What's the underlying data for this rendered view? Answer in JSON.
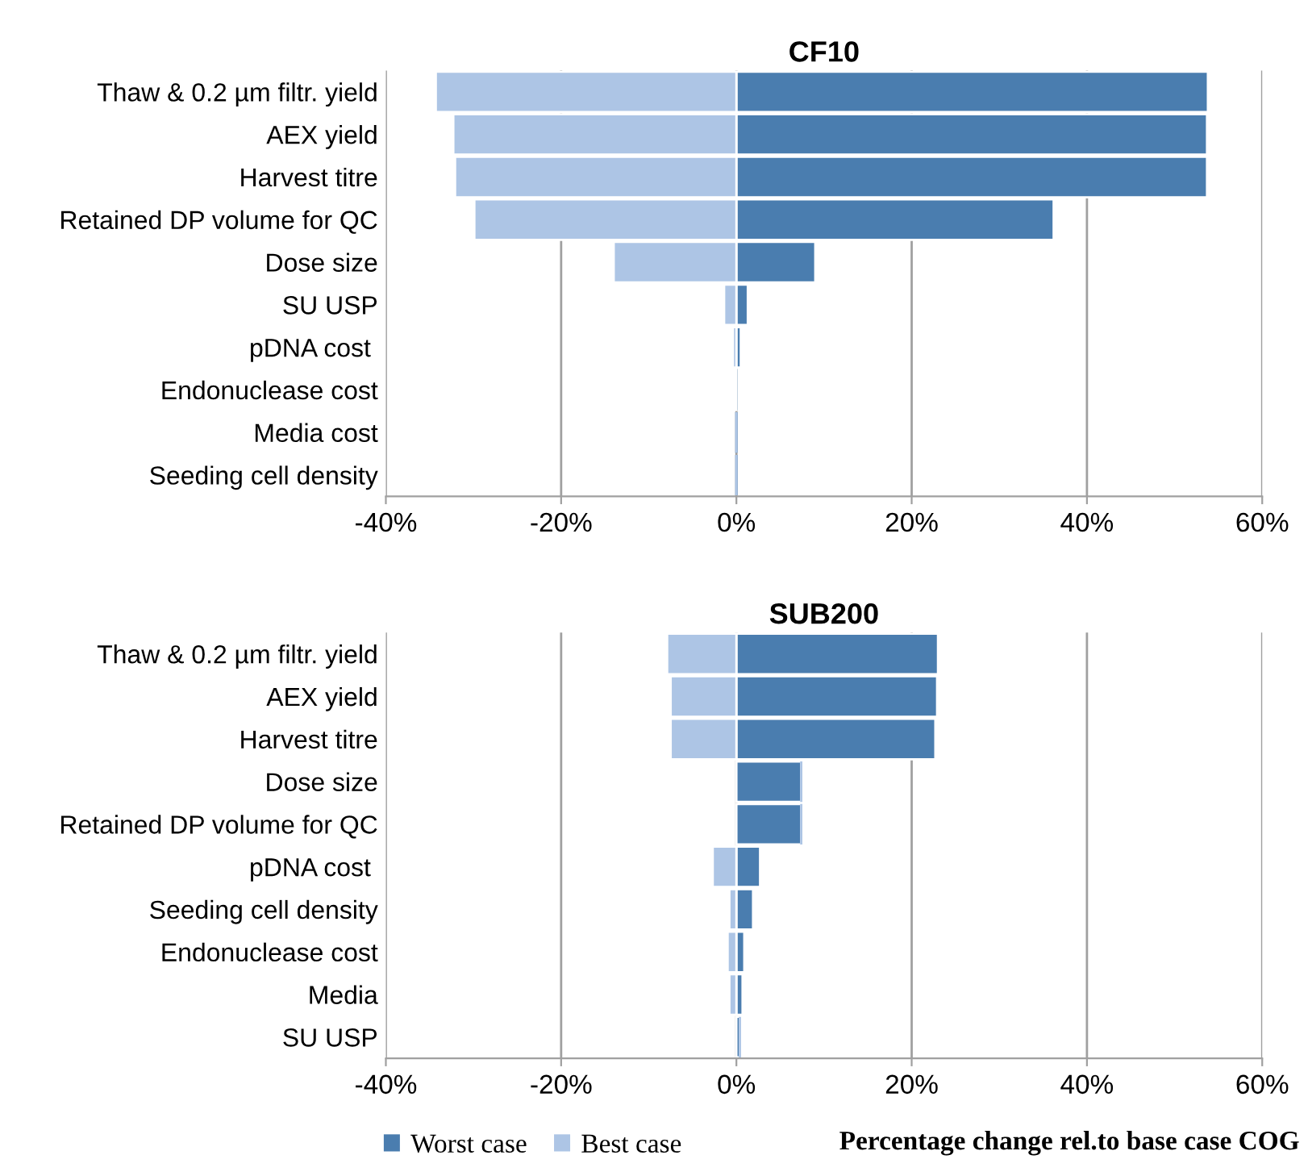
{
  "chart_data": [
    {
      "type": "bar",
      "orientation": "horizontal",
      "title": "CF10",
      "categories": [
        "Thaw & 0.2 µm filtr. yield",
        "AEX yield",
        "Harvest titre",
        "Retained DP volume for QC",
        "Dose size",
        "SU USP",
        "pDNA cost ",
        "Endonuclease cost",
        "Media cost",
        "Seeding cell density"
      ],
      "series": [
        {
          "color": "#4a7daf",
          "values": [
            53.8,
            53.7,
            53.7,
            36.2,
            9.0,
            1.3,
            0.5,
            0.0,
            0.0,
            0.0
          ]
        },
        {
          "color": "#adc5e5",
          "values": [
            -34.3,
            -32.3,
            -32.1,
            -29.9,
            -14.0,
            -1.4,
            -0.4,
            -0.1,
            0.0,
            0.0
          ]
        }
      ],
      "stacked": true,
      "xlim": [
        -40,
        60
      ],
      "xticks": [
        {
          "value": -40,
          "label": "-40%"
        },
        {
          "value": -20,
          "label": "-20%"
        },
        {
          "value": 0,
          "label": "0%"
        },
        {
          "value": 20,
          "label": "20%"
        },
        {
          "value": 40,
          "label": "40%"
        },
        {
          "value": 60,
          "label": "60%"
        }
      ],
      "grid": "x",
      "legend": false
    },
    {
      "type": "bar",
      "orientation": "horizontal",
      "title": "SUB200",
      "xlabel": "Percentage change rel.to base case COG",
      "categories": [
        "Thaw & 0.2 µm filtr. yield",
        "AEX yield",
        "Harvest titre",
        "Dose size",
        "Retained DP volume for QC",
        "pDNA cost ",
        "Seeding cell density",
        "Endonuclease cost",
        "Media",
        "SU USP"
      ],
      "series": [
        {
          "name": "Worst case",
          "color": "#4a7daf",
          "values": [
            23.0,
            22.9,
            22.7,
            7.4,
            7.4,
            2.7,
            1.9,
            0.9,
            0.7,
            0.4
          ]
        },
        {
          "name": "Best case",
          "color": "#adc5e5",
          "values": [
            -7.9,
            -7.5,
            -7.5,
            0.0,
            0.0,
            -2.7,
            -0.8,
            -1.0,
            -0.8,
            0.0
          ]
        }
      ],
      "stacked": true,
      "xlim": [
        -40,
        60
      ],
      "xticks": [
        {
          "value": -40,
          "label": "-40%"
        },
        {
          "value": -20,
          "label": "-20%"
        },
        {
          "value": 0,
          "label": "0%"
        },
        {
          "value": 20,
          "label": "20%"
        },
        {
          "value": 40,
          "label": "40%"
        },
        {
          "value": 60,
          "label": "60%"
        }
      ],
      "grid": "x",
      "legend": "bottom"
    }
  ]
}
